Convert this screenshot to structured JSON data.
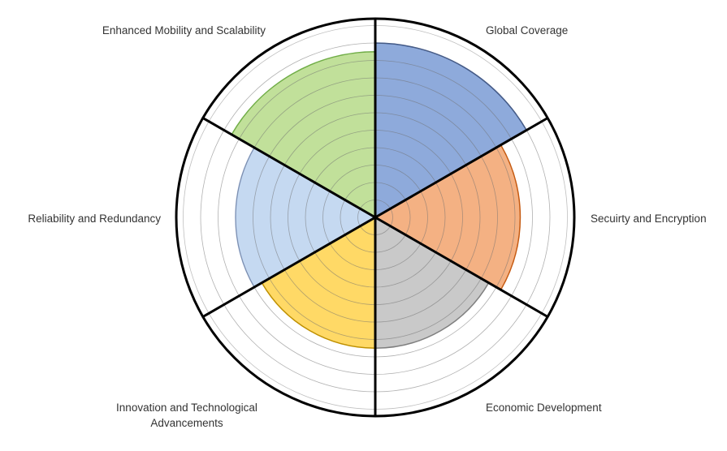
{
  "chart_data": {
    "type": "polar-area",
    "title": "",
    "categories": [
      "Global Coverage",
      "Secuirty and Encryption",
      "Economic Development",
      "Innovation and Technological Advancements",
      "Reliability and Redundancy",
      "Enhanced Mobility and Scalability"
    ],
    "series": [
      {
        "values": [
          10,
          8.3,
          7.5,
          7.5,
          8,
          9.5
        ],
        "colors": [
          "#8eaadb",
          "#f4b183",
          "#c9c9c9",
          "#ffd966",
          "#c5d9f1",
          "#c1e09a"
        ],
        "edge_colors": [
          "#2f4f8f",
          "#c55a11",
          "#7f7f7f",
          "#bf9000",
          "#8eaadb",
          "#70ad47"
        ]
      }
    ],
    "rlim": [
      0,
      10
    ],
    "rings": 10,
    "grid": true,
    "legend": "none"
  }
}
